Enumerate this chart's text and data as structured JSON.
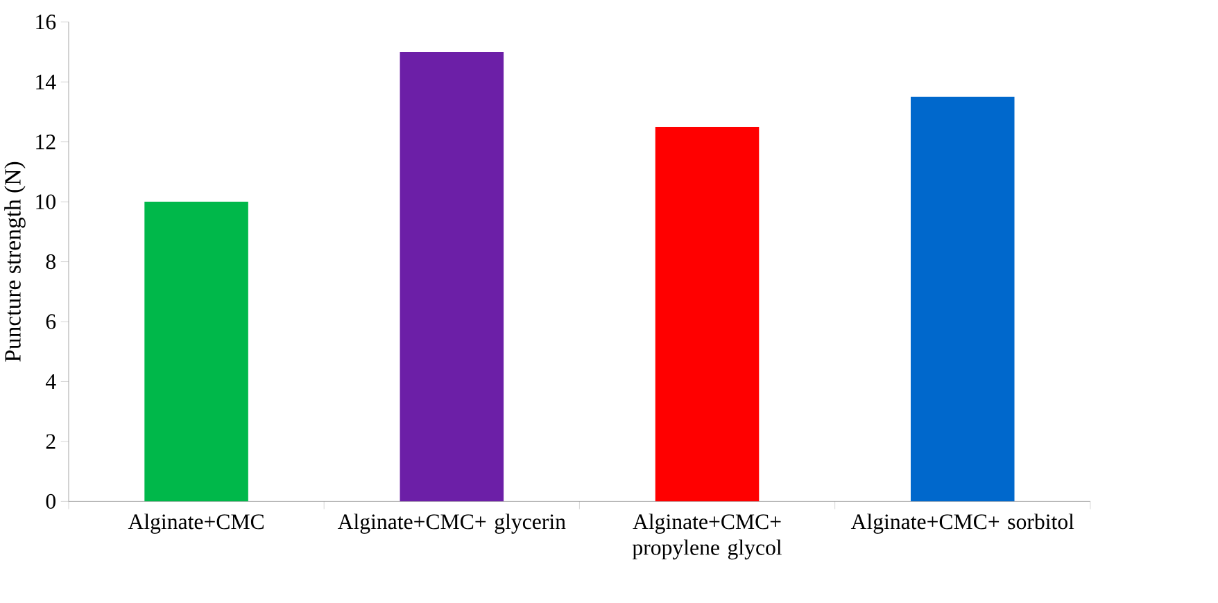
{
  "chart_data": {
    "type": "bar",
    "ylabel": "Puncture strength (N)",
    "categories": [
      "Alginate+CMC",
      "Alginate+CMC+ glycerin",
      "Alginate+CMC+ propylene glycol",
      "Alginate+CMC+ sorbitol"
    ],
    "values": [
      10,
      15,
      12.5,
      13.5
    ],
    "colors": [
      "#00b84a",
      "#6c1fa7",
      "#ff0000",
      "#0068cc"
    ],
    "ylim": [
      0,
      16
    ],
    "yticks": [
      0,
      2,
      4,
      6,
      8,
      10,
      12,
      14,
      16
    ],
    "grid": false
  }
}
